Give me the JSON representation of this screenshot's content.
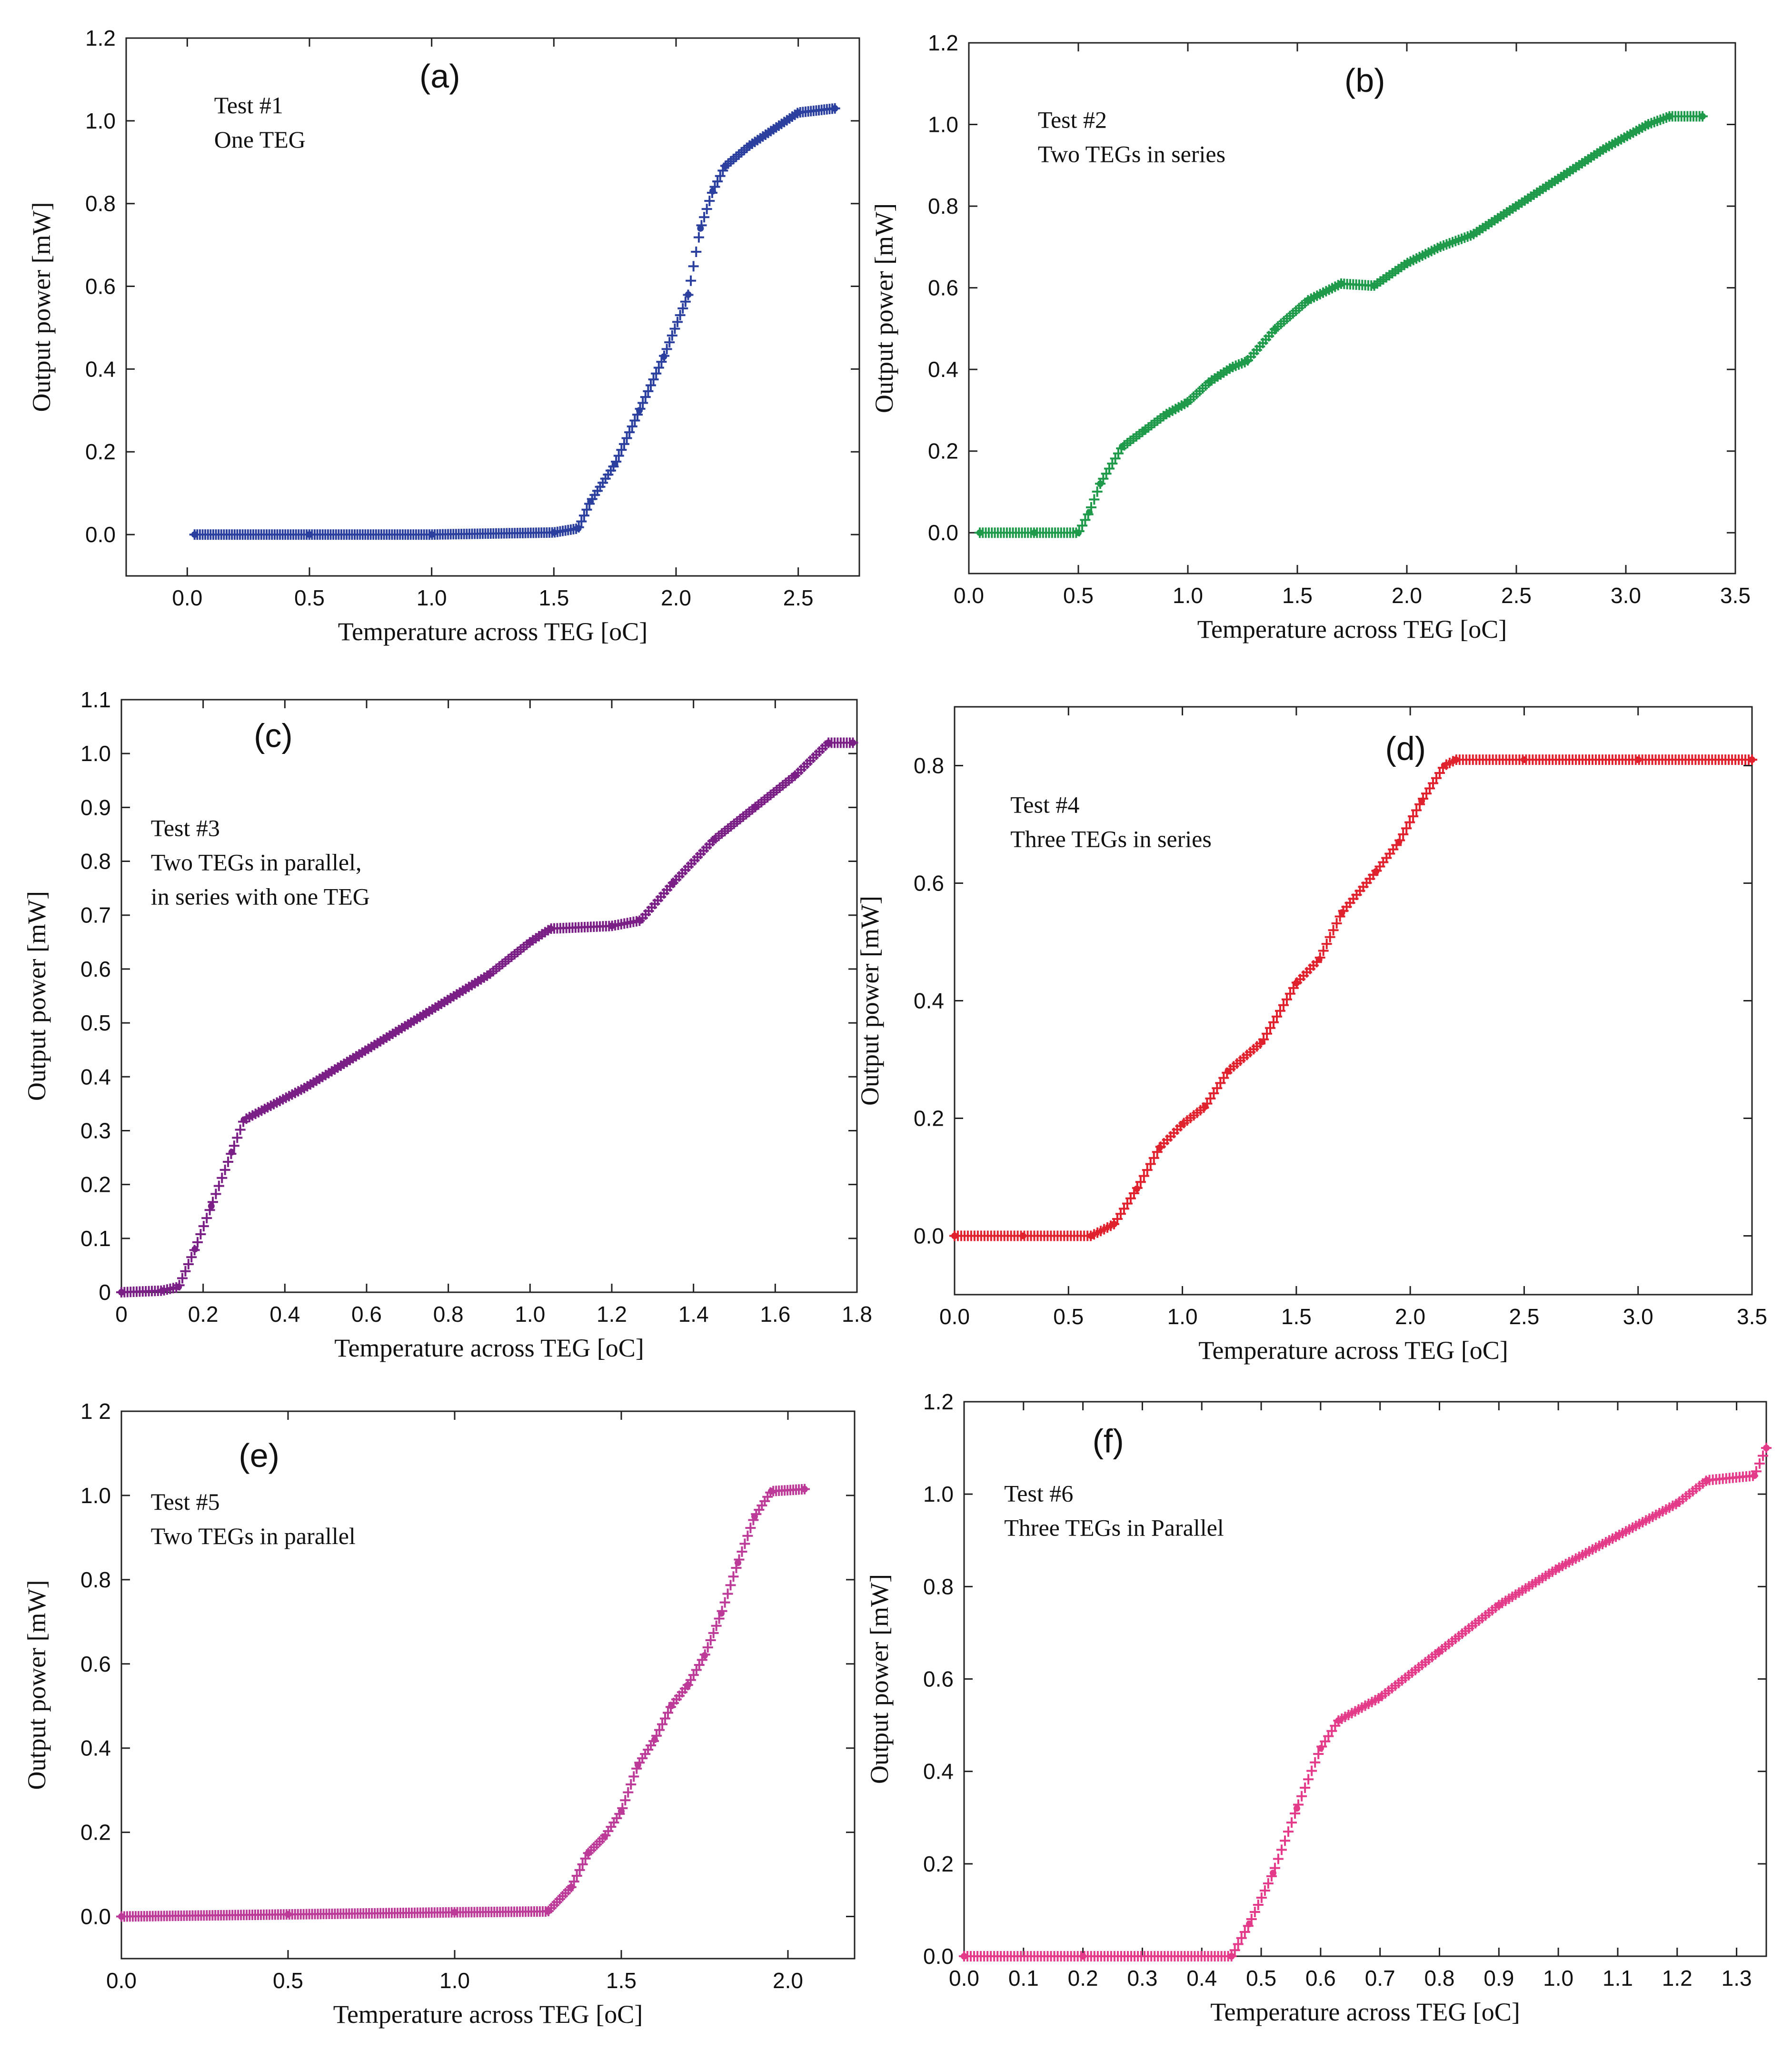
{
  "chart_data": [
    {
      "id": "a",
      "type": "scatter",
      "panel_label": "(a)",
      "notes": [
        "Test #1",
        "One TEG"
      ],
      "xlabel": "Temperature across TEG [oC]",
      "ylabel": "Output power [mW]",
      "xlim": [
        -0.25,
        2.75
      ],
      "ylim": [
        -0.1,
        1.2
      ],
      "xticks": [
        0,
        0.5,
        1,
        1.5,
        2,
        2.5
      ],
      "xtick_labels": [
        "0.0",
        "0.5",
        "1.0",
        "1.5",
        "2.0",
        "2.5"
      ],
      "yticks": [
        0,
        0.2,
        0.4,
        0.6,
        0.8,
        1,
        1.2
      ],
      "ytick_labels": [
        "0.0",
        "0.2",
        "0.4",
        "0.6",
        "0.8",
        "1.0",
        "1.2"
      ],
      "color": "#2a3f9e",
      "points": [
        [
          0.03,
          0
        ],
        [
          0.5,
          0
        ],
        [
          1,
          0
        ],
        [
          1.5,
          0.005
        ],
        [
          1.6,
          0.015
        ],
        [
          1.65,
          0.08
        ],
        [
          1.75,
          0.17
        ],
        [
          1.85,
          0.3
        ],
        [
          1.95,
          0.43
        ],
        [
          2.05,
          0.58
        ],
        [
          2.1,
          0.74
        ],
        [
          2.15,
          0.83
        ],
        [
          2.2,
          0.89
        ],
        [
          2.3,
          0.94
        ],
        [
          2.4,
          0.98
        ],
        [
          2.5,
          1.02
        ],
        [
          2.65,
          1.03
        ]
      ]
    },
    {
      "id": "b",
      "type": "scatter",
      "panel_label": "(b)",
      "notes": [
        "Test #2",
        "Two TEGs in series"
      ],
      "xlabel": "Temperature across TEG [oC]",
      "ylabel": "Output power [mW]",
      "xlim": [
        0,
        3.5
      ],
      "ylim": [
        -0.1,
        1.2
      ],
      "xticks": [
        0,
        0.5,
        1,
        1.5,
        2,
        2.5,
        3,
        3.5
      ],
      "xtick_labels": [
        "0.0",
        "0.5",
        "1.0",
        "1.5",
        "2.0",
        "2.5",
        "3.0",
        "3.5"
      ],
      "yticks": [
        0,
        0.2,
        0.4,
        0.6,
        0.8,
        1,
        1.2
      ],
      "ytick_labels": [
        "0.0",
        "0.2",
        "0.4",
        "0.6",
        "0.8",
        "1.0",
        "1.2"
      ],
      "color": "#1f9a4a",
      "points": [
        [
          0.05,
          0
        ],
        [
          0.3,
          0
        ],
        [
          0.5,
          0
        ],
        [
          0.55,
          0.05
        ],
        [
          0.6,
          0.12
        ],
        [
          0.7,
          0.21
        ],
        [
          0.8,
          0.25
        ],
        [
          0.9,
          0.29
        ],
        [
          1,
          0.32
        ],
        [
          1.1,
          0.37
        ],
        [
          1.2,
          0.405
        ],
        [
          1.27,
          0.42
        ],
        [
          1.4,
          0.5
        ],
        [
          1.55,
          0.57
        ],
        [
          1.7,
          0.61
        ],
        [
          1.85,
          0.605
        ],
        [
          2,
          0.66
        ],
        [
          2.15,
          0.7
        ],
        [
          2.3,
          0.73
        ],
        [
          2.5,
          0.8
        ],
        [
          2.7,
          0.87
        ],
        [
          2.9,
          0.94
        ],
        [
          3.1,
          1
        ],
        [
          3.2,
          1.02
        ],
        [
          3.35,
          1.02
        ]
      ]
    },
    {
      "id": "c",
      "type": "scatter",
      "panel_label": "(c)",
      "notes": [
        "Test #3",
        "Two TEGs in parallel,",
        "in series with one TEG"
      ],
      "xlabel": "Temperature across TEG [oC]",
      "ylabel": "Output power [mW]",
      "xlim": [
        0,
        1.8
      ],
      "ylim": [
        0,
        1.1
      ],
      "xticks": [
        0,
        0.2,
        0.4,
        0.6,
        0.8,
        1,
        1.2,
        1.4,
        1.6,
        1.8
      ],
      "xtick_labels": [
        "0",
        "0.2",
        "0.4",
        "0.6",
        "0.8",
        "1.0",
        "1.2",
        "1.4",
        "1.6",
        "1.8"
      ],
      "yticks": [
        0,
        0.1,
        0.2,
        0.3,
        0.4,
        0.5,
        0.6,
        0.7,
        0.8,
        0.9,
        1,
        1.1
      ],
      "ytick_labels": [
        "0",
        "0.1",
        "0.2",
        "0.3",
        "0.4",
        "0.5",
        "0.6",
        "0.7",
        "0.8",
        "0.9",
        "1.0",
        "1.1"
      ],
      "color": "#7a1f86",
      "points": [
        [
          0,
          0
        ],
        [
          0.1,
          0.003
        ],
        [
          0.14,
          0.01
        ],
        [
          0.18,
          0.08
        ],
        [
          0.22,
          0.16
        ],
        [
          0.27,
          0.26
        ],
        [
          0.3,
          0.32
        ],
        [
          0.35,
          0.34
        ],
        [
          0.45,
          0.38
        ],
        [
          0.6,
          0.45
        ],
        [
          0.75,
          0.52
        ],
        [
          0.9,
          0.59
        ],
        [
          1,
          0.65
        ],
        [
          1.05,
          0.675
        ],
        [
          1.2,
          0.68
        ],
        [
          1.27,
          0.69
        ],
        [
          1.35,
          0.76
        ],
        [
          1.45,
          0.84
        ],
        [
          1.55,
          0.9
        ],
        [
          1.65,
          0.96
        ],
        [
          1.73,
          1.02
        ],
        [
          1.79,
          1.02
        ]
      ]
    },
    {
      "id": "d",
      "type": "scatter",
      "panel_label": "(d)",
      "notes": [
        "Test #4",
        "Three TEGs in series"
      ],
      "xlabel": "Temperature across TEG [oC]",
      "ylabel": "Output power [mW]",
      "xlim": [
        0,
        3.5
      ],
      "ylim": [
        -0.1,
        0.9
      ],
      "xticks": [
        0,
        0.5,
        1,
        1.5,
        2,
        2.5,
        3,
        3.5
      ],
      "xtick_labels": [
        "0.0",
        "0.5",
        "1.0",
        "1.5",
        "2.0",
        "2.5",
        "3.0",
        "3.5"
      ],
      "yticks": [
        0,
        0.2,
        0.4,
        0.6,
        0.8
      ],
      "ytick_labels": [
        "0.0",
        "0.2",
        "0.4",
        "0.6",
        "0.8"
      ],
      "color": "#e0222f",
      "points": [
        [
          0,
          0
        ],
        [
          0.3,
          0
        ],
        [
          0.6,
          0
        ],
        [
          0.7,
          0.02
        ],
        [
          0.8,
          0.08
        ],
        [
          0.9,
          0.15
        ],
        [
          1,
          0.19
        ],
        [
          1.1,
          0.22
        ],
        [
          1.2,
          0.28
        ],
        [
          1.35,
          0.33
        ],
        [
          1.5,
          0.43
        ],
        [
          1.6,
          0.47
        ],
        [
          1.7,
          0.55
        ],
        [
          1.85,
          0.62
        ],
        [
          1.95,
          0.67
        ],
        [
          2.05,
          0.74
        ],
        [
          2.15,
          0.8
        ],
        [
          2.2,
          0.81
        ],
        [
          2.5,
          0.81
        ],
        [
          3,
          0.81
        ],
        [
          3.5,
          0.81
        ]
      ]
    },
    {
      "id": "e",
      "type": "scatter",
      "panel_label": "(e)",
      "notes": [
        "Test #5",
        "Two TEGs in parallel"
      ],
      "xlabel": "Temperature across TEG [oC]",
      "ylabel": "Output power [mW]",
      "xlim": [
        0,
        2.2
      ],
      "ylim": [
        -0.1,
        1.2
      ],
      "xticks": [
        0,
        0.5,
        1,
        1.5,
        2
      ],
      "xtick_labels": [
        "0.0",
        "0.5",
        "1.0",
        "1.5",
        "2.0"
      ],
      "yticks": [
        0,
        0.2,
        0.4,
        0.6,
        0.8,
        1,
        1.2
      ],
      "ytick_labels": [
        "0.0",
        "0.2",
        "0.4",
        "0.6",
        "0.8",
        "1.0",
        "1 2"
      ],
      "color": "#bc3a98",
      "points": [
        [
          0,
          0
        ],
        [
          0.5,
          0.005
        ],
        [
          1,
          0.01
        ],
        [
          1.28,
          0.012
        ],
        [
          1.35,
          0.07
        ],
        [
          1.4,
          0.15
        ],
        [
          1.45,
          0.19
        ],
        [
          1.5,
          0.25
        ],
        [
          1.55,
          0.36
        ],
        [
          1.6,
          0.42
        ],
        [
          1.65,
          0.5
        ],
        [
          1.7,
          0.55
        ],
        [
          1.75,
          0.62
        ],
        [
          1.8,
          0.72
        ],
        [
          1.85,
          0.84
        ],
        [
          1.9,
          0.95
        ],
        [
          1.95,
          1.01
        ],
        [
          2.05,
          1.015
        ]
      ]
    },
    {
      "id": "f",
      "type": "scatter",
      "panel_label": "(f)",
      "notes": [
        "Test #6",
        "Three TEGs in Parallel"
      ],
      "xlabel": "Temperature across TEG [oC]",
      "ylabel": "Output power [mW]",
      "xlim": [
        0,
        1.35
      ],
      "ylim": [
        0,
        1.2
      ],
      "xticks": [
        0,
        0.1,
        0.2,
        0.3,
        0.4,
        0.5,
        0.6,
        0.7,
        0.8,
        0.9,
        1,
        1.1,
        1.2,
        1.3
      ],
      "xtick_labels": [
        "0.0",
        "0.1",
        "0.2",
        "0.3",
        "0.4",
        "0.5",
        "0.6",
        "0.7",
        "0.8",
        "0.9",
        "1.0",
        "1.1",
        "1.2",
        "1.3"
      ],
      "yticks": [
        0,
        0.2,
        0.4,
        0.6,
        0.8,
        1,
        1.2
      ],
      "ytick_labels": [
        "0.0",
        "0.2",
        "0.4",
        "0.6",
        "0.8",
        "1.0",
        "1.2"
      ],
      "color": "#e33b8a",
      "points": [
        [
          0,
          0
        ],
        [
          0.2,
          0
        ],
        [
          0.45,
          0
        ],
        [
          0.48,
          0.07
        ],
        [
          0.52,
          0.18
        ],
        [
          0.56,
          0.32
        ],
        [
          0.6,
          0.45
        ],
        [
          0.63,
          0.51
        ],
        [
          0.7,
          0.56
        ],
        [
          0.8,
          0.66
        ],
        [
          0.9,
          0.76
        ],
        [
          1,
          0.84
        ],
        [
          1.1,
          0.91
        ],
        [
          1.2,
          0.98
        ],
        [
          1.25,
          1.03
        ],
        [
          1.33,
          1.04
        ],
        [
          1.35,
          1.1
        ]
      ]
    }
  ]
}
